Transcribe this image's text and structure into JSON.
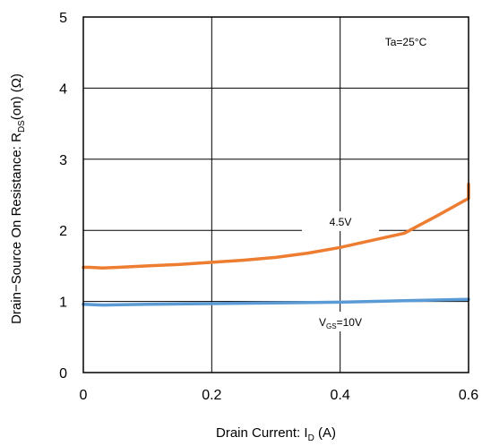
{
  "chart_data": {
    "type": "line",
    "xlabel_main": "Drain Current: I",
    "xlabel_sub": "D",
    "xlabel_unit": " (A)",
    "ylabel_main": "Drain−Source On Resistance: R",
    "ylabel_sub": "DS",
    "ylabel_unit": "(on) (Ω)",
    "xlim": [
      0,
      0.6
    ],
    "ylim": [
      0,
      5
    ],
    "xticks": [
      0,
      0.2,
      0.4,
      0.6
    ],
    "xtick_labels": [
      "0",
      "0.2",
      "0.4",
      "0.6"
    ],
    "yticks": [
      0,
      1,
      2,
      3,
      4,
      5
    ],
    "ytick_labels": [
      "0",
      "1",
      "2",
      "3",
      "4",
      "5"
    ],
    "grid": true,
    "annotations": {
      "temperature": "Ta=25°C",
      "vgs45": "4.5V",
      "vgs10_main": "V",
      "vgs10_sub": "GS",
      "vgs10_value": "=10V"
    },
    "series": [
      {
        "name": "4.5V",
        "color": "#ED7D31",
        "x": [
          0,
          0.01,
          0.03,
          0.1,
          0.15,
          0.2,
          0.25,
          0.3,
          0.35,
          0.4,
          0.45,
          0.5,
          0.55,
          0.6,
          0.6
        ],
        "y": [
          1.48,
          1.48,
          1.47,
          1.5,
          1.52,
          1.55,
          1.58,
          1.62,
          1.68,
          1.76,
          1.86,
          1.96,
          2.2,
          2.45,
          2.65
        ]
      },
      {
        "name": "V_GS=10V",
        "color": "#5B9BD5",
        "x": [
          0,
          0.03,
          0.1,
          0.2,
          0.3,
          0.4,
          0.5,
          0.6
        ],
        "y": [
          0.96,
          0.95,
          0.96,
          0.97,
          0.98,
          0.99,
          1.01,
          1.03
        ]
      }
    ]
  }
}
